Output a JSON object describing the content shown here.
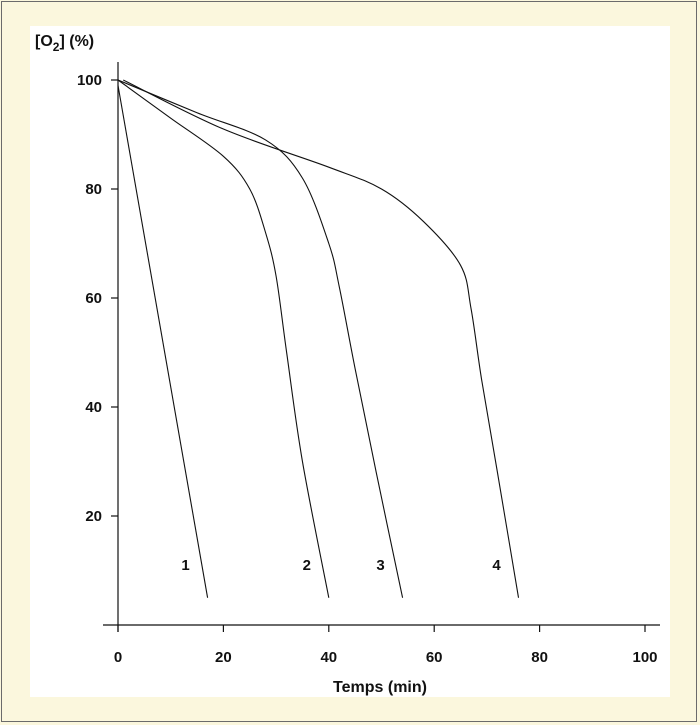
{
  "chart_data": {
    "type": "line",
    "ylabel_main": "[O",
    "ylabel_sub": "2",
    "ylabel_rest": "] (%)",
    "xlabel": "Temps (min)",
    "xlim": [
      0,
      100
    ],
    "ylim": [
      0,
      100
    ],
    "xticks": [
      "0",
      "20",
      "40",
      "60",
      "80",
      "100"
    ],
    "yticks": [
      "20",
      "40",
      "60",
      "80",
      "100"
    ],
    "grid": false,
    "series": [
      {
        "name": "1",
        "x": [
          0,
          17
        ],
        "y": [
          99,
          5
        ]
      },
      {
        "name": "2",
        "x": [
          0,
          10,
          20,
          25,
          28,
          30,
          32,
          35,
          40
        ],
        "y": [
          100,
          93,
          86,
          80,
          72,
          64,
          50,
          30,
          5
        ]
      },
      {
        "name": "3",
        "x": [
          0,
          15,
          28,
          35,
          40,
          42,
          45,
          49,
          54
        ],
        "y": [
          100,
          94,
          89,
          82,
          70,
          62,
          47,
          28,
          5
        ]
      },
      {
        "name": "4",
        "x": [
          1,
          20,
          40,
          50,
          58,
          65,
          67,
          69,
          72,
          76
        ],
        "y": [
          100,
          91,
          84,
          80,
          74,
          66,
          58,
          45,
          28,
          5
        ]
      }
    ]
  }
}
